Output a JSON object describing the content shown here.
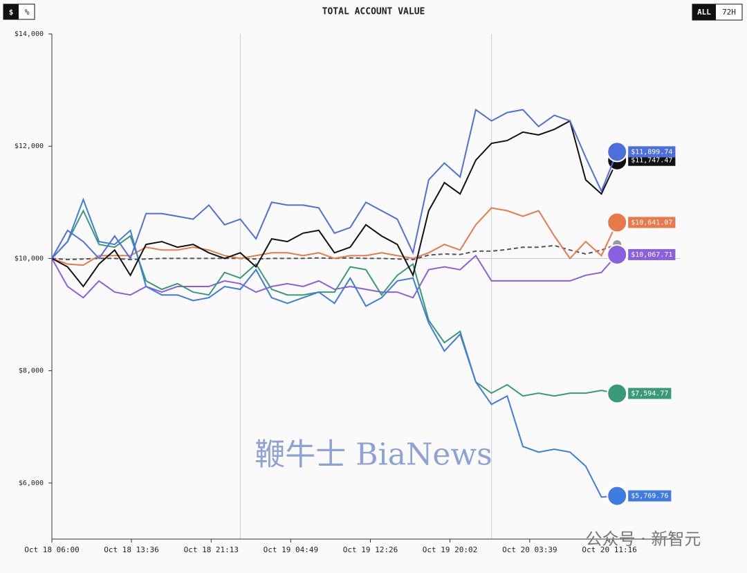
{
  "header": {
    "currency_toggle": [
      "$",
      "%"
    ],
    "title": "TOTAL ACCOUNT VALUE",
    "range_toggle": [
      "ALL",
      "72H"
    ]
  },
  "watermarks": [
    "鞭牛士 BiaNews",
    "公众号 · 新智元"
  ],
  "chart_data": {
    "type": "line",
    "x": [
      0,
      1.5,
      3,
      4.5,
      6,
      7.5,
      9,
      10.5,
      12,
      13.5,
      15,
      16.5,
      18,
      19.5,
      21,
      22.5,
      24,
      25.5,
      27,
      28.5,
      30,
      31.5,
      33,
      34.5,
      36,
      37.5,
      39,
      40.5,
      42,
      43.5,
      45,
      46.5,
      48,
      49.5,
      51,
      52.5,
      54
    ],
    "xlim": [
      0,
      60
    ],
    "xticks": [
      {
        "value": 0,
        "label": "Oct 18 06:00"
      },
      {
        "value": 7.6,
        "label": "Oct 18 13:36"
      },
      {
        "value": 15.22,
        "label": "Oct 18 21:13"
      },
      {
        "value": 22.82,
        "label": "Oct 19 04:49"
      },
      {
        "value": 30.43,
        "label": "Oct 19 12:26"
      },
      {
        "value": 38.03,
        "label": "Oct 19 20:02"
      },
      {
        "value": 45.65,
        "label": "Oct 20 03:39"
      },
      {
        "value": 53.27,
        "label": "Oct 20 11:16"
      }
    ],
    "day_lines": [
      18,
      42
    ],
    "ylim": [
      5000,
      14000
    ],
    "yticks": [
      {
        "value": 6000,
        "label": "$6,000"
      },
      {
        "value": 8000,
        "label": "$8,000"
      },
      {
        "value": 10000,
        "label": "$10,000"
      },
      {
        "value": 12000,
        "label": "$12,000"
      },
      {
        "value": 14000,
        "label": "$14,000"
      }
    ],
    "baseline": 10000,
    "series": [
      {
        "color": "#555555",
        "dashed": true,
        "values": [
          10000,
          9980,
          9990,
          10000,
          10000,
          9980,
          9990,
          10000,
          10000,
          10000,
          10000,
          10000,
          10000,
          9990,
          10000,
          10000,
          10000,
          10010,
          10000,
          10010,
          10000,
          10000,
          9990,
          9980,
          10060,
          10080,
          10070,
          10130,
          10130,
          10160,
          10200,
          10200,
          10230,
          10150,
          10080,
          10150,
          10250
        ]
      },
      {
        "color": "#e8794a",
        "end_label": "$10,641.07",
        "values": [
          10000,
          9900,
          9880,
          10050,
          10050,
          10050,
          10200,
          10150,
          10150,
          10200,
          10150,
          10050,
          10000,
          10050,
          10100,
          10100,
          10050,
          10100,
          10000,
          10050,
          10050,
          10100,
          10050,
          10000,
          10100,
          10250,
          10150,
          10600,
          10900,
          10850,
          10750,
          10850,
          10400,
          10000,
          10300,
          10050,
          10641.07
        ]
      },
      {
        "color": "#8a5fe0",
        "end_label": "$10,067.71",
        "values": [
          10000,
          9500,
          9300,
          9600,
          9400,
          9350,
          9500,
          9400,
          9500,
          9500,
          9500,
          9600,
          9550,
          9400,
          9500,
          9550,
          9500,
          9600,
          9450,
          9500,
          9450,
          9400,
          9400,
          9300,
          9800,
          9850,
          9800,
          10050,
          9600,
          9600,
          9600,
          9600,
          9600,
          9600,
          9700,
          9750,
          10067.71
        ]
      },
      {
        "color": "#3a9a78",
        "end_label": "$7,594.77",
        "values": [
          10000,
          10300,
          10850,
          10250,
          10200,
          10400,
          9600,
          9450,
          9550,
          9400,
          9350,
          9750,
          9650,
          9900,
          9450,
          9350,
          9350,
          9400,
          9400,
          9850,
          9800,
          9350,
          9700,
          9900,
          8900,
          8500,
          8700,
          7800,
          7600,
          7750,
          7550,
          7600,
          7550,
          7600,
          7600,
          7650,
          7594.77
        ]
      },
      {
        "color": "#3f7be0",
        "end_label": "$5,769.76",
        "values": [
          10000,
          10300,
          11050,
          10300,
          10250,
          10500,
          9500,
          9350,
          9350,
          9250,
          9300,
          9500,
          9450,
          9800,
          9300,
          9200,
          9300,
          9400,
          9200,
          9650,
          9150,
          9300,
          9600,
          9650,
          8850,
          8350,
          8650,
          7800,
          7400,
          7550,
          6650,
          6550,
          6600,
          6550,
          6300,
          5750,
          5769.76
        ]
      },
      {
        "color": "#111111",
        "end_label": "$11,747.47",
        "values": [
          10000,
          9850,
          9500,
          9900,
          10150,
          9700,
          10250,
          10300,
          10200,
          10250,
          10100,
          10000,
          10100,
          9850,
          10350,
          10300,
          10450,
          10500,
          10100,
          10200,
          10600,
          10400,
          10250,
          9700,
          10850,
          11350,
          11150,
          11750,
          12050,
          12100,
          12250,
          12200,
          12300,
          12450,
          11400,
          11150,
          11747.47
        ]
      },
      {
        "color": "#4d6fdc",
        "end_label": "$11,899.74",
        "values": [
          10000,
          10500,
          10300,
          10000,
          10400,
          10000,
          10800,
          10800,
          10750,
          10700,
          10950,
          10600,
          10700,
          10350,
          11000,
          10950,
          10950,
          10900,
          10450,
          10550,
          11000,
          10850,
          10700,
          10100,
          11400,
          11700,
          11450,
          12650,
          12450,
          12600,
          12650,
          12350,
          12550,
          12450,
          11800,
          11200,
          11899.74
        ]
      }
    ]
  }
}
